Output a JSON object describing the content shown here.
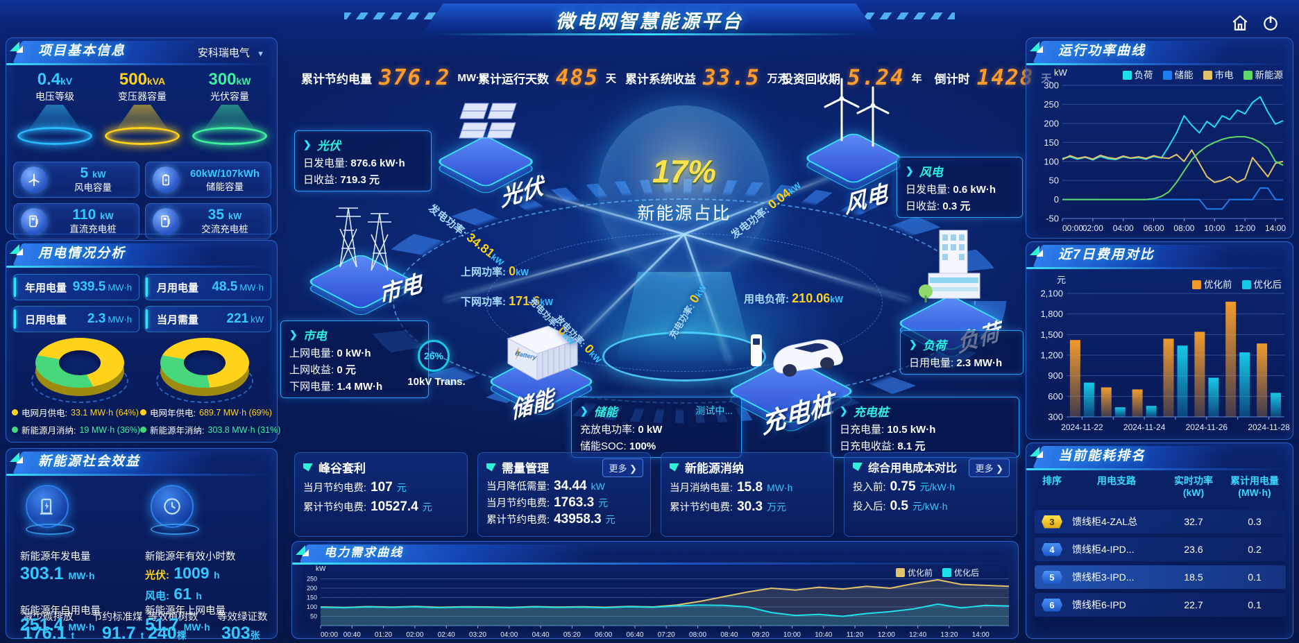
{
  "header": {
    "title": "微电网智慧能源平台"
  },
  "kpi": {
    "items": [
      {
        "label": "累计节约电量",
        "value": "376.2",
        "unit": "MW·h"
      },
      {
        "label": "累计运行天数",
        "value": "485",
        "unit": "天"
      },
      {
        "label": "累计系统收益",
        "value": "33.5",
        "unit": "万元"
      },
      {
        "label": "投资回收期",
        "value": "5.24",
        "unit": "年"
      },
      {
        "label": "倒计时",
        "value": "1428",
        "unit": "天"
      }
    ]
  },
  "project_info": {
    "title": "项目基本信息",
    "company": "安科瑞电气",
    "spotlights": [
      {
        "value": "0.4",
        "unit": "kV",
        "label": "电压等级"
      },
      {
        "value": "500",
        "unit": "kVA",
        "label": "变压器容量"
      },
      {
        "value": "300",
        "unit": "kW",
        "label": "光伏容量"
      }
    ],
    "stats": [
      {
        "value": "5",
        "unit": "kW",
        "label": "风电容量"
      },
      {
        "value": "60kW/107kWh",
        "unit": "",
        "label": "储能容量"
      },
      {
        "value": "110",
        "unit": "kW",
        "label": "直流充电桩"
      },
      {
        "value": "35",
        "unit": "kW",
        "label": "交流充电桩"
      }
    ]
  },
  "usage": {
    "title": "用电情况分析",
    "stats": [
      {
        "label": "年用电量",
        "value": "939.5",
        "unit": "MW·h"
      },
      {
        "label": "月用电量",
        "value": "48.5",
        "unit": "MW·h"
      },
      {
        "label": "日用电量",
        "value": "2.3",
        "unit": "MW·h"
      },
      {
        "label": "当月需量",
        "value": "221",
        "unit": "kW"
      }
    ],
    "legend": [
      {
        "label": "电网月供电:",
        "value": "33.1 MW·h (64%)"
      },
      {
        "label": "新能源月消纳:",
        "value": "19 MW·h (36%)"
      },
      {
        "label": "电网年供电:",
        "value": "689.7 MW·h (69%)"
      },
      {
        "label": "新能源年消纳:",
        "value": "303.8 MW·h (31%)"
      }
    ],
    "month_donut": {
      "grid_pct": 64,
      "renewable_pct": 36
    },
    "year_donut": {
      "grid_pct": 69,
      "renewable_pct": 31
    },
    "colors": {
      "grid": "#ffd21c",
      "renewable": "#46d87a"
    }
  },
  "social": {
    "title": "新能源社会效益",
    "gen_label": "新能源年发电量",
    "gen_value": "303.1",
    "gen_unit": "MW·h",
    "hours_label": "新能源年有效小时数",
    "pv_label": "光伏:",
    "pv_value": "1009",
    "pv_unit": "h",
    "wind_label": "风电:",
    "wind_value": "61",
    "wind_unit": "h",
    "self_label": "新能源年自用电量",
    "self_value": "251.4",
    "self_unit": "MW·h",
    "ongrid_label": "新能源年上网电量",
    "ongrid_value": "51.7",
    "ongrid_unit": "MW·h",
    "co2_label": "减少碳排放",
    "co2_value": "176.1",
    "co2_unit": "t",
    "coal_label": "节约标准煤",
    "coal_value": "91.7",
    "coal_unit": "t",
    "tree_label": "等效植树数",
    "tree_value": "240",
    "tree_unit": "棵",
    "cert_label": "等效绿证数",
    "cert_value": "303",
    "cert_unit": "张"
  },
  "diagram": {
    "center_value": "17%",
    "center_label": "新能源占比",
    "pv": {
      "title": "光伏",
      "node": "光伏",
      "r1l": "日发电量:",
      "r1v": "876.6 kW·h",
      "r2l": "日收益:",
      "r2v": "719.3 元"
    },
    "wind": {
      "title": "风电",
      "node": "风电",
      "r1l": "日发电量:",
      "r1v": "0.6 kW·h",
      "r2l": "日收益:",
      "r2v": "0.3 元"
    },
    "grid": {
      "title": "市电",
      "node": "市电",
      "r1l": "上网电量:",
      "r1v": "0 kW·h",
      "r2l": "上网收益:",
      "r2v": "0 元",
      "r3l": "下网电量:",
      "r3v": "1.4 MW·h"
    },
    "storage": {
      "title": "储能",
      "node": "储能",
      "status": "测试中...",
      "r1l": "充放电功率:",
      "r1v": "0 kW",
      "r2l": "储能SOC:",
      "r2v": "100%"
    },
    "charger": {
      "title": "充电桩",
      "node": "充电桩",
      "r1l": "日充电量:",
      "r1v": "10.5 kW·h",
      "r2l": "日充电收益:",
      "r2v": "8.1 元"
    },
    "load": {
      "title": "负荷",
      "node": "负荷",
      "r1l": "日用电量:",
      "r1v": "2.3 MW·h"
    },
    "transformer_pct": "26%",
    "transformer_label": "10kV Trans.",
    "flows": {
      "pv_gen_label": "发电功率:",
      "pv_gen_value": "34.81",
      "pv_gen_unit": "kW",
      "to_grid_label": "上网功率:",
      "to_grid_value": "0",
      "to_grid_unit": "kW",
      "from_grid_label": "下网功率:",
      "from_grid_value": "171.6",
      "from_grid_unit": "kW",
      "wind_gen_label": "发电功率:",
      "wind_gen_value": "0.04",
      "wind_gen_unit": "kW",
      "load_label": "用电负荷:",
      "load_value": "210.06",
      "load_unit": "kW",
      "charge_label": "充电功率:",
      "charge_value": "0",
      "charge_unit": "kW",
      "discharge_label": "放电功率:",
      "discharge_value": "0",
      "discharge_unit": "kW",
      "pile_label": "充电功率:",
      "pile_value": "0",
      "pile_unit": "kW"
    }
  },
  "cards": [
    {
      "title": "峰谷套利",
      "more": "",
      "rows": [
        {
          "label": "当月节约电费:",
          "value": "107",
          "unit": "元"
        },
        {
          "label": "累计节约电费:",
          "value": "10527.4",
          "unit": "元"
        }
      ]
    },
    {
      "title": "需量管理",
      "more": "更多",
      "rows": [
        {
          "label": "当月降低需量:",
          "value": "34.44",
          "unit": "kW"
        },
        {
          "label": "当月节约电费:",
          "value": "1763.3",
          "unit": "元"
        },
        {
          "label": "累计节约电费:",
          "value": "43958.3",
          "unit": "元"
        }
      ]
    },
    {
      "title": "新能源消纳",
      "more": "",
      "rows": [
        {
          "label": "当月消纳电量:",
          "value": "15.8",
          "unit": "MW·h"
        },
        {
          "label": "累计节约电费:",
          "value": "30.3",
          "unit": "万元"
        }
      ]
    },
    {
      "title": "综合用电成本对比",
      "more": "更多",
      "rows": [
        {
          "label": "投入前:",
          "value": "0.75",
          "unit": "元/kW·h"
        },
        {
          "label": "投入后:",
          "value": "0.5",
          "unit": "元/kW·h"
        }
      ]
    }
  ],
  "panels": {
    "power_curve": "运行功率曲线",
    "cost_compare": "近7日费用对比",
    "demand_curve": "电力需求曲线",
    "ranking": "当前能耗排名"
  },
  "ranking": {
    "headers": [
      {
        "label": "排序",
        "unit": ""
      },
      {
        "label": "用电支路",
        "unit": ""
      },
      {
        "label": "实时功率",
        "unit": "(kW)"
      },
      {
        "label": "累计用电量",
        "unit": "(MW·h)"
      }
    ],
    "rows": [
      {
        "rank": "3",
        "name": "馈线柜4-ZAL总",
        "power": "32.7",
        "energy": "0.3"
      },
      {
        "rank": "4",
        "name": "馈线柜4-IPD...",
        "power": "23.6",
        "energy": "0.2"
      },
      {
        "rank": "5",
        "name": "馈线柜3-IPD...",
        "power": "18.5",
        "energy": "0.1"
      },
      {
        "rank": "6",
        "name": "馈线柜6-IPD",
        "power": "22.7",
        "energy": "0.1"
      }
    ]
  },
  "chart_data": [
    {
      "type": "line",
      "title": "运行功率曲线",
      "ylabel": "kW",
      "ylim": [
        -50,
        300
      ],
      "yticks": [
        -50,
        0,
        50,
        100,
        150,
        200,
        250,
        300
      ],
      "x_hours_max": 14.5,
      "x_tick_hours": [
        0,
        2,
        4,
        6,
        8,
        10,
        12,
        14
      ],
      "x_tick_labels": [
        "00:00",
        "02:00",
        "04:00",
        "06:00",
        "08:00",
        "10:00",
        "12:00",
        "14:00"
      ],
      "legend_position": "top",
      "grid": true,
      "series": [
        {
          "name": "负荷",
          "color": "#1ee0e8",
          "values": [
            108,
            112,
            106,
            111,
            104,
            113,
            107,
            105,
            112,
            108,
            110,
            106,
            113,
            109,
            140,
            175,
            220,
            195,
            175,
            205,
            190,
            220,
            210,
            235,
            225,
            255,
            270,
            230,
            198,
            207
          ]
        },
        {
          "name": "储能",
          "color": "#1f7df0",
          "values": [
            0,
            0,
            0,
            0,
            0,
            0,
            0,
            0,
            0,
            0,
            0,
            0,
            0,
            0,
            0,
            0,
            0,
            0,
            0,
            -25,
            -25,
            -25,
            0,
            0,
            0,
            0,
            30,
            30,
            0,
            0
          ]
        },
        {
          "name": "市电",
          "color": "#e3c36a",
          "values": [
            105,
            115,
            108,
            112,
            106,
            116,
            110,
            107,
            114,
            109,
            112,
            108,
            115,
            110,
            108,
            118,
            100,
            130,
            95,
            60,
            45,
            50,
            60,
            45,
            55,
            110,
            85,
            60,
            95,
            100
          ]
        },
        {
          "name": "新能源",
          "color": "#5fd868",
          "values": [
            0,
            0,
            0,
            0,
            0,
            0,
            0,
            0,
            0,
            0,
            0,
            0,
            2,
            8,
            20,
            45,
            75,
            105,
            125,
            140,
            150,
            158,
            163,
            165,
            165,
            160,
            150,
            135,
            100,
            90
          ]
        }
      ]
    },
    {
      "type": "bar",
      "title": "近7日费用对比",
      "ylabel": "元",
      "ylim": [
        300,
        2100
      ],
      "yticks": [
        300,
        600,
        900,
        1200,
        1500,
        1800,
        2100
      ],
      "categories": [
        "2024-11-22",
        "2024-11-23",
        "2024-11-24",
        "2024-11-25",
        "2024-11-26",
        "2024-11-27",
        "2024-11-28"
      ],
      "x_label_every": 2,
      "legend_position": "top-right",
      "grid": true,
      "series": [
        {
          "name": "优化前",
          "color": "#f09a2e",
          "values": [
            1420,
            730,
            700,
            1440,
            1540,
            1980,
            1370
          ]
        },
        {
          "name": "优化后",
          "color": "#17c8e8",
          "values": [
            800,
            440,
            460,
            1340,
            870,
            1240,
            650
          ]
        }
      ]
    },
    {
      "type": "line",
      "title": "电力需求曲线",
      "ylabel": "kW",
      "ylim": [
        0,
        300
      ],
      "yticks": [
        50,
        100,
        150,
        200,
        250
      ],
      "x_hours_max": 14.6,
      "x_tick_hours": [
        0,
        0.667,
        1.333,
        2,
        2.667,
        3.333,
        4,
        4.667,
        5.333,
        6,
        6.667,
        7.333,
        8,
        8.667,
        9.333,
        10,
        10.667,
        11.333,
        12,
        12.667,
        13.333,
        14
      ],
      "x_tick_labels": [
        "00:00",
        "00:40",
        "01:20",
        "02:00",
        "02:40",
        "03:20",
        "04:00",
        "04:40",
        "05:20",
        "06:00",
        "06:40",
        "07:20",
        "08:00",
        "08:40",
        "09:20",
        "10:00",
        "10:40",
        "11:20",
        "12:00",
        "12:40",
        "13:20",
        "14:00"
      ],
      "legend_position": "top-right",
      "area_fill": true,
      "grid": true,
      "series": [
        {
          "name": "优化前",
          "color": "#e3c36a",
          "values": [
            100,
            97,
            102,
            99,
            103,
            98,
            101,
            100,
            97,
            102,
            99,
            101,
            98,
            103,
            100,
            110,
            130,
            155,
            180,
            200,
            190,
            205,
            195,
            210,
            200,
            225,
            245,
            220,
            215,
            210
          ]
        },
        {
          "name": "优化后",
          "color": "#1ee0e8",
          "values": [
            98,
            96,
            100,
            97,
            101,
            96,
            99,
            98,
            96,
            100,
            97,
            99,
            96,
            101,
            98,
            105,
            110,
            108,
            100,
            70,
            55,
            60,
            50,
            65,
            75,
            90,
            115,
            95,
            108,
            105
          ]
        }
      ]
    }
  ]
}
